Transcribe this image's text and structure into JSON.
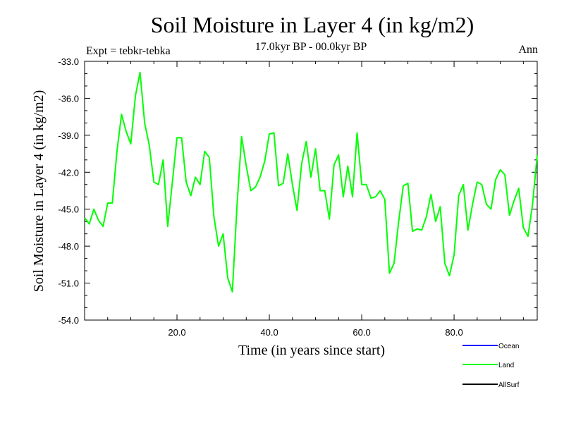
{
  "chart_data": {
    "type": "line",
    "title": "Soil Moisture in Layer 4 (in kg/m2)",
    "subtitle": "17.0kyr BP - 00.0kyr BP",
    "experiment_label": "Expt = tebkr-tebka",
    "season_label": "Ann",
    "xlabel": "Time (in years since start)",
    "ylabel": "Soil Moisture in Layer 4 (in kg/m2)",
    "xlim": [
      0,
      98
    ],
    "ylim": [
      -54.0,
      -33.0
    ],
    "x_ticks": [
      20.0,
      40.0,
      60.0,
      80.0
    ],
    "x_tick_labels": [
      "20.0",
      "40.0",
      "60.0",
      "80.0"
    ],
    "y_ticks": [
      -54.0,
      -51.0,
      -48.0,
      -45.0,
      -42.0,
      -39.0,
      -36.0,
      -33.0
    ],
    "y_tick_labels": [
      "-54.0",
      "-51.0",
      "-48.0",
      "-45.0",
      "-42.0",
      "-39.0",
      "-36.0",
      "-33.0"
    ],
    "legend": [
      {
        "name": "Ocean",
        "color": "#0000ff"
      },
      {
        "name": "Land",
        "color": "#00ff00"
      },
      {
        "name": "AllSurf",
        "color": "#000000"
      }
    ],
    "series": [
      {
        "name": "Land",
        "color": "#00ff00",
        "x": [
          0,
          1,
          2,
          3,
          4,
          5,
          6,
          7,
          8,
          9,
          10,
          11,
          12,
          13,
          14,
          15,
          16,
          17,
          18,
          19,
          20,
          21,
          22,
          23,
          24,
          25,
          26,
          27,
          28,
          29,
          30,
          31,
          32,
          33,
          34,
          35,
          36,
          37,
          38,
          39,
          40,
          41,
          42,
          43,
          44,
          45,
          46,
          47,
          48,
          49,
          50,
          51,
          52,
          53,
          54,
          55,
          56,
          57,
          58,
          59,
          60,
          61,
          62,
          63,
          64,
          65,
          66,
          67,
          68,
          69,
          70,
          71,
          72,
          73,
          74,
          75,
          76,
          77,
          78,
          79,
          80,
          81,
          82,
          83,
          84,
          85,
          86,
          87,
          88,
          89,
          90,
          91,
          92,
          93,
          94,
          95,
          96,
          97,
          98
        ],
        "values": [
          -45.7,
          -46.2,
          -45.0,
          -45.9,
          -46.4,
          -44.5,
          -44.5,
          -40.3,
          -37.3,
          -38.7,
          -39.7,
          -35.8,
          -33.9,
          -38.0,
          -39.8,
          -42.8,
          -43.0,
          -41.0,
          -46.4,
          -42.8,
          -39.2,
          -39.2,
          -42.8,
          -43.9,
          -42.4,
          -43.0,
          -40.3,
          -40.8,
          -45.6,
          -48.0,
          -47.0,
          -50.6,
          -51.7,
          -44.7,
          -39.1,
          -41.5,
          -43.5,
          -43.2,
          -42.4,
          -41.1,
          -38.9,
          -38.8,
          -43.1,
          -42.9,
          -40.5,
          -43.0,
          -45.1,
          -41.3,
          -39.5,
          -42.4,
          -40.1,
          -43.5,
          -43.5,
          -45.8,
          -41.4,
          -40.6,
          -44.0,
          -41.5,
          -44.0,
          -38.8,
          -43.0,
          -43.0,
          -44.1,
          -44.0,
          -43.5,
          -44.2,
          -50.2,
          -49.4,
          -46.0,
          -43.1,
          -42.9,
          -46.8,
          -46.6,
          -46.7,
          -45.6,
          -43.8,
          -46.0,
          -44.8,
          -49.4,
          -50.4,
          -48.7,
          -43.9,
          -43.0,
          -46.7,
          -44.6,
          -42.8,
          -43.0,
          -44.6,
          -45.0,
          -42.6,
          -41.8,
          -42.2,
          -45.5,
          -44.3,
          -43.3,
          -46.5,
          -47.2,
          -44.6,
          -40.6
        ]
      }
    ]
  }
}
